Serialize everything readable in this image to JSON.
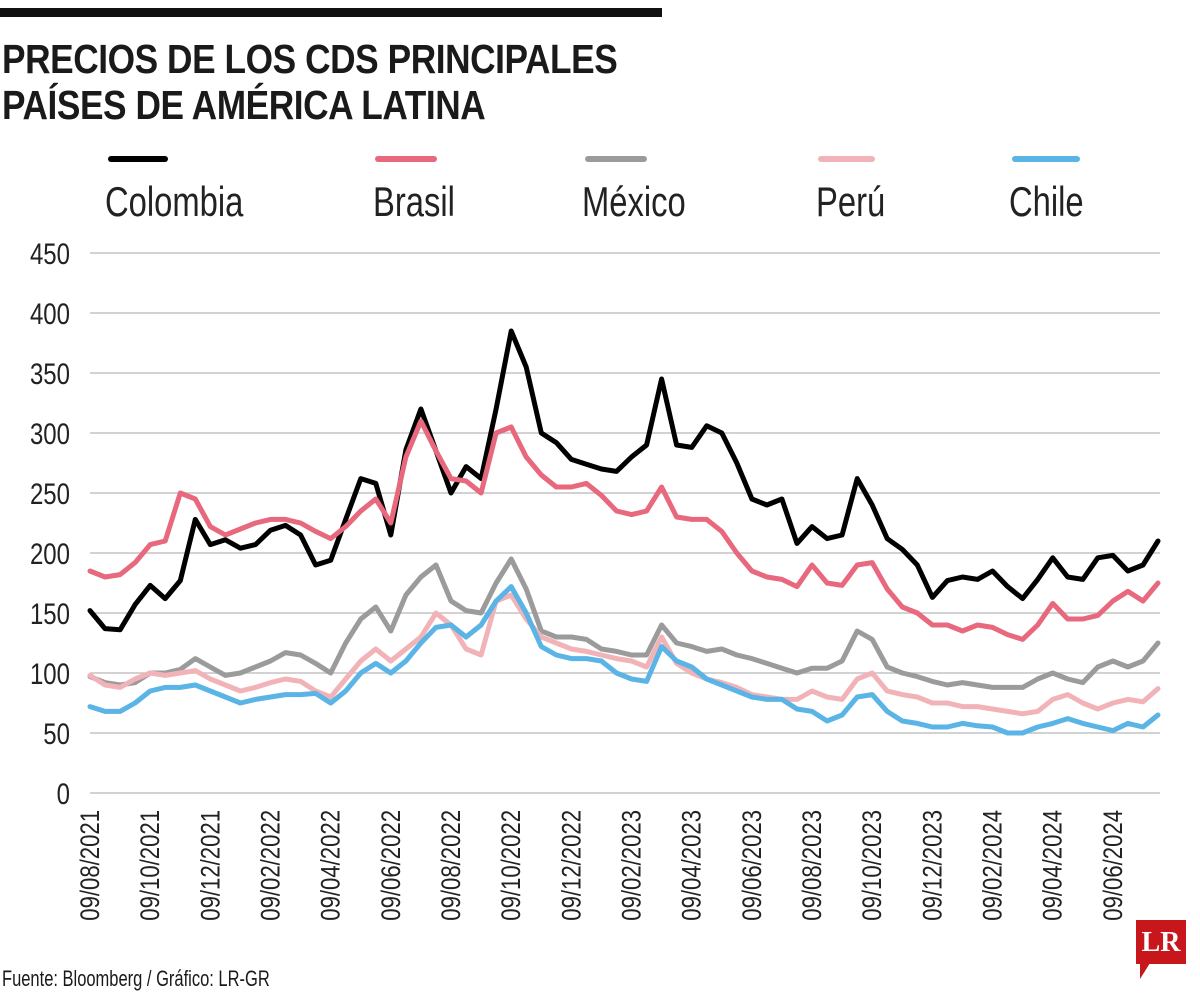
{
  "title": {
    "line1": "PRECIOS DE LOS CDS PRINCIPALES",
    "line2": "PAÍSES DE AMÉRICA LATINA"
  },
  "source": "Fuente: Bloomberg / Gráfico: LR-GR",
  "logo_text": "LR",
  "chart_data": {
    "type": "line",
    "title": "PRECIOS DE LOS CDS PRINCIPALES PAÍSES DE AMÉRICA LATINA",
    "xlabel": "",
    "ylabel": "",
    "ylim": [
      0,
      450
    ],
    "yticks": [
      0,
      50,
      100,
      150,
      200,
      250,
      300,
      350,
      400,
      450
    ],
    "xtick_labels": [
      "09/08/2021",
      "09/10/2021",
      "09/12/2021",
      "09/02/2022",
      "09/04/2022",
      "09/06/2022",
      "09/08/2022",
      "09/10/2022",
      "09/12/2022",
      "09/02/2023",
      "09/04/2023",
      "09/06/2023",
      "09/08/2023",
      "09/10/2023",
      "09/12/2023",
      "09/02/2024",
      "09/04/2024",
      "09/06/2024"
    ],
    "grid": true,
    "legend_placement": "top",
    "x": [
      "09/08/2021",
      "24/08/2021",
      "09/09/2021",
      "24/09/2021",
      "09/10/2021",
      "24/10/2021",
      "09/11/2021",
      "24/11/2021",
      "09/12/2021",
      "24/12/2021",
      "09/01/2022",
      "24/01/2022",
      "09/02/2022",
      "24/02/2022",
      "09/03/2022",
      "24/03/2022",
      "09/04/2022",
      "24/04/2022",
      "09/05/2022",
      "24/05/2022",
      "09/06/2022",
      "24/06/2022",
      "09/07/2022",
      "24/07/2022",
      "09/08/2022",
      "24/08/2022",
      "09/09/2022",
      "24/09/2022",
      "09/10/2022",
      "24/10/2022",
      "09/11/2022",
      "24/11/2022",
      "09/12/2022",
      "24/12/2022",
      "09/01/2023",
      "24/01/2023",
      "09/02/2023",
      "24/02/2023",
      "09/03/2023",
      "24/03/2023",
      "09/04/2023",
      "24/04/2023",
      "09/05/2023",
      "24/05/2023",
      "09/06/2023",
      "24/06/2023",
      "09/07/2023",
      "24/07/2023",
      "09/08/2023",
      "24/08/2023",
      "09/09/2023",
      "24/09/2023",
      "09/10/2023",
      "24/10/2023",
      "09/11/2023",
      "24/11/2023",
      "09/12/2023",
      "24/12/2023",
      "09/01/2024",
      "24/01/2024",
      "09/02/2024",
      "24/02/2024",
      "09/03/2024",
      "24/03/2024",
      "09/04/2024",
      "24/04/2024",
      "09/05/2024",
      "24/05/2024",
      "09/06/2024",
      "24/06/2024",
      "09/07/2024",
      "24/07/2024"
    ],
    "series": [
      {
        "name": "Colombia",
        "color": "#000000",
        "values": [
          152,
          137,
          136,
          157,
          173,
          162,
          177,
          228,
          207,
          211,
          204,
          207,
          219,
          223,
          215,
          190,
          194,
          228,
          262,
          258,
          215,
          286,
          320,
          285,
          250,
          272,
          262,
          320,
          385,
          355,
          300,
          292,
          278,
          274,
          270,
          268,
          280,
          290,
          345,
          290,
          288,
          306,
          300,
          275,
          245,
          240,
          245,
          208,
          222,
          212,
          215,
          262,
          240,
          212,
          203,
          190,
          163,
          177,
          180,
          178,
          185,
          172,
          162,
          178,
          196,
          180,
          178,
          196,
          198,
          185,
          190,
          210
        ]
      },
      {
        "name": "Brasil",
        "color": "#e8687d",
        "values": [
          185,
          180,
          182,
          192,
          207,
          210,
          250,
          245,
          222,
          215,
          220,
          225,
          228,
          228,
          225,
          218,
          212,
          222,
          235,
          245,
          225,
          280,
          310,
          285,
          262,
          260,
          250,
          300,
          305,
          280,
          265,
          255,
          255,
          258,
          248,
          235,
          232,
          235,
          255,
          230,
          228,
          228,
          218,
          200,
          185,
          180,
          178,
          172,
          190,
          175,
          173,
          190,
          192,
          170,
          155,
          150,
          140,
          140,
          135,
          140,
          138,
          132,
          128,
          140,
          158,
          145,
          145,
          148,
          160,
          168,
          160,
          175
        ]
      },
      {
        "name": "México",
        "color": "#9b9b9b",
        "values": [
          97,
          92,
          90,
          92,
          100,
          100,
          103,
          112,
          105,
          98,
          100,
          105,
          110,
          117,
          115,
          108,
          100,
          125,
          145,
          155,
          135,
          165,
          180,
          190,
          160,
          152,
          150,
          175,
          195,
          170,
          135,
          130,
          130,
          128,
          120,
          118,
          115,
          115,
          140,
          125,
          122,
          118,
          120,
          115,
          112,
          108,
          104,
          100,
          104,
          104,
          110,
          135,
          128,
          105,
          100,
          97,
          93,
          90,
          92,
          90,
          88,
          88,
          88,
          95,
          100,
          95,
          92,
          105,
          110,
          105,
          110,
          125
        ]
      },
      {
        "name": "Perú",
        "color": "#f2b3b8",
        "values": [
          98,
          90,
          88,
          95,
          100,
          98,
          100,
          102,
          95,
          90,
          85,
          88,
          92,
          95,
          93,
          85,
          80,
          95,
          110,
          120,
          110,
          120,
          130,
          150,
          140,
          120,
          115,
          160,
          165,
          145,
          130,
          125,
          120,
          118,
          115,
          112,
          110,
          105,
          130,
          108,
          100,
          95,
          92,
          88,
          82,
          80,
          78,
          78,
          85,
          80,
          78,
          95,
          100,
          85,
          82,
          80,
          75,
          75,
          72,
          72,
          70,
          68,
          66,
          68,
          78,
          82,
          75,
          70,
          75,
          78,
          76,
          87
        ]
      },
      {
        "name": "Chile",
        "color": "#5ab4e5",
        "values": [
          72,
          68,
          68,
          75,
          85,
          88,
          88,
          90,
          85,
          80,
          75,
          78,
          80,
          82,
          82,
          83,
          75,
          85,
          100,
          108,
          100,
          110,
          125,
          138,
          140,
          130,
          140,
          160,
          172,
          150,
          122,
          115,
          112,
          112,
          110,
          100,
          95,
          93,
          122,
          110,
          105,
          95,
          90,
          85,
          80,
          78,
          78,
          70,
          68,
          60,
          65,
          80,
          82,
          68,
          60,
          58,
          55,
          55,
          58,
          56,
          55,
          50,
          50,
          55,
          58,
          62,
          58,
          55,
          52,
          58,
          55,
          65
        ]
      }
    ]
  }
}
